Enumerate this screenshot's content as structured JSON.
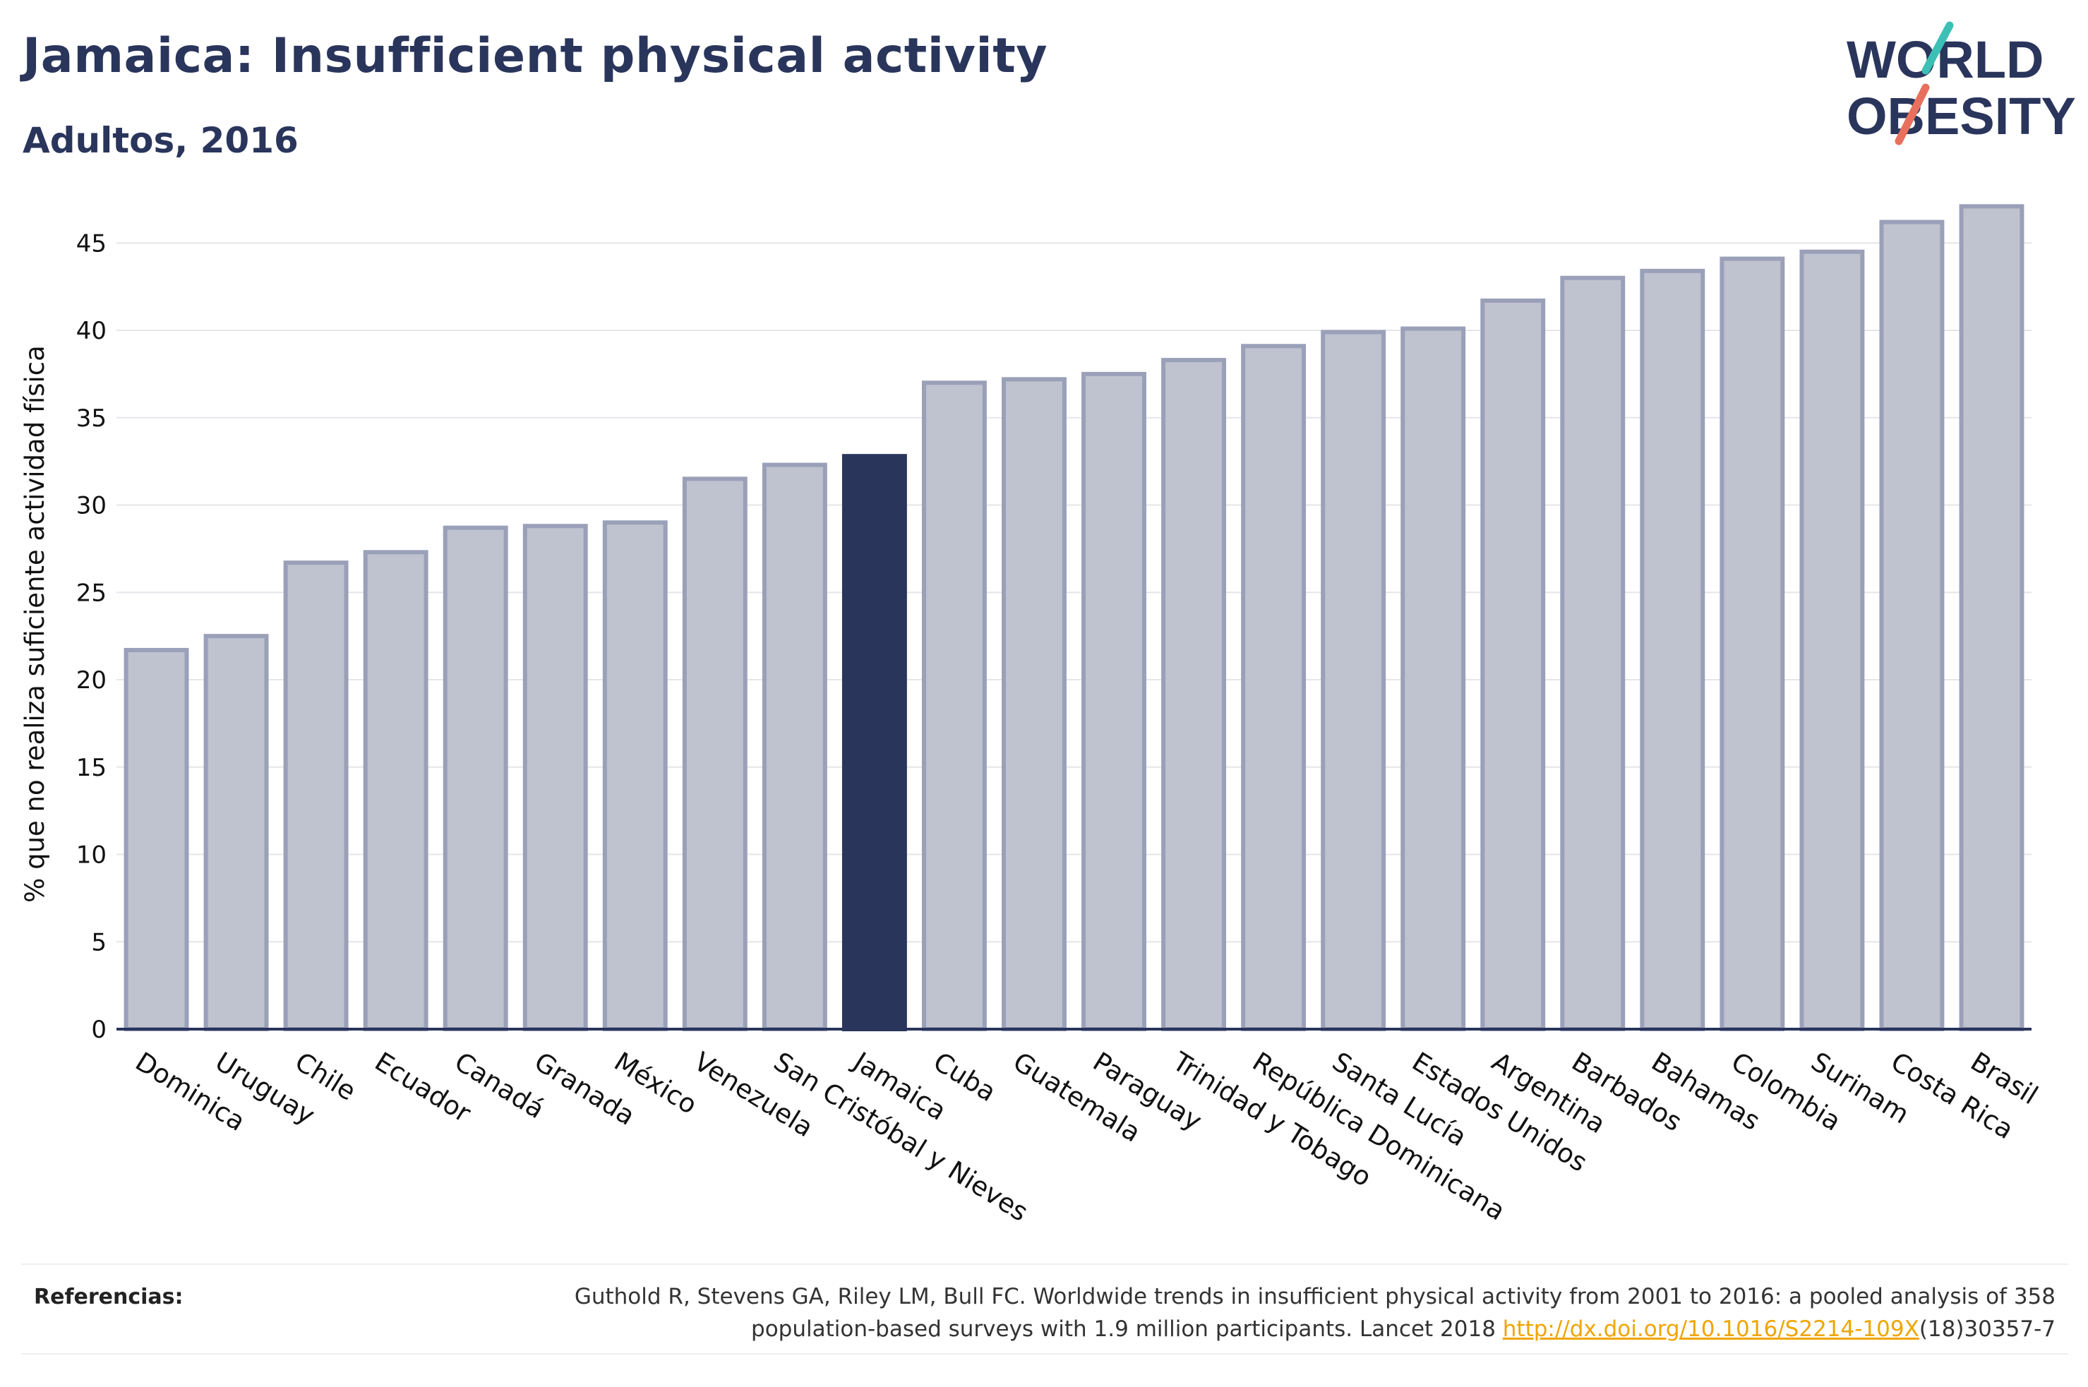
{
  "header": {
    "title": "Jamaica: Insufficient physical activity",
    "subtitle": "Adultos, 2016"
  },
  "logo": {
    "line1": "WORLD",
    "line2": "OBESITY"
  },
  "colors": {
    "highlight": "#2a355c",
    "bar_fill": "#bfc2cf",
    "bar_stroke": "#9aa0b8",
    "grid": "#e6e6ea",
    "text": "#2a355c",
    "logo_teal": "#3cc0b6",
    "logo_coral": "#e8705c"
  },
  "chart_data": {
    "type": "bar",
    "ylabel": "% que no realiza suficiente actividad física",
    "ylim": [
      0,
      48
    ],
    "yticks": [
      0,
      5,
      10,
      15,
      20,
      25,
      30,
      35,
      40,
      45
    ],
    "grid": true,
    "highlight": "Jamaica",
    "categories": [
      "Dominica",
      "Uruguay",
      "Chile",
      "Ecuador",
      "Canadá",
      "Granada",
      "México",
      "Venezuela",
      "San Cristóbal y Nieves",
      "Jamaica",
      "Cuba",
      "Guatemala",
      "Paraguay",
      "Trinidad y Tobago",
      "República Dominicana",
      "Santa Lucía",
      "Estados Unidos",
      "Argentina",
      "Barbados",
      "Bahamas",
      "Colombia",
      "Surinam",
      "Costa Rica",
      "Brasil"
    ],
    "values": [
      21.7,
      22.5,
      26.7,
      27.3,
      28.7,
      28.8,
      29.0,
      31.5,
      32.3,
      32.8,
      37.0,
      37.2,
      37.5,
      38.3,
      39.1,
      39.9,
      40.1,
      41.7,
      43.0,
      43.4,
      44.1,
      44.5,
      46.2,
      47.1
    ]
  },
  "references": {
    "label": "Referencias:",
    "text_line1": "Guthold R, Stevens GA, Riley LM, Bull FC. Worldwide trends in insufficient physical activity from 2001 to 2016: a pooled analysis of 358",
    "text_line2_start": "population-based surveys with 1.9 million participants. Lancet 2018 ",
    "link": "http://dx.doi.org/10.1016/S2214-109X",
    "text_line2_end": "(18)30357-7"
  }
}
